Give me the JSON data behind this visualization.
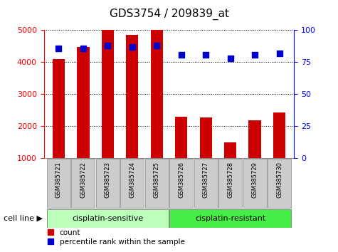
{
  "title": "GDS3754 / 209839_at",
  "categories": [
    "GSM385721",
    "GSM385722",
    "GSM385723",
    "GSM385724",
    "GSM385725",
    "GSM385726",
    "GSM385727",
    "GSM385728",
    "GSM385729",
    "GSM385730"
  ],
  "counts": [
    4100,
    4480,
    5000,
    4850,
    5000,
    2280,
    2270,
    1480,
    2170,
    2420
  ],
  "percentile_ranks": [
    86,
    86,
    88,
    87,
    88,
    81,
    81,
    78,
    81,
    82
  ],
  "bar_color": "#cc0000",
  "dot_color": "#0000cc",
  "group1_label": "cisplatin-sensitive",
  "group2_label": "cisplatin-resistant",
  "group1_indices": [
    0,
    1,
    2,
    3,
    4
  ],
  "group2_indices": [
    5,
    6,
    7,
    8,
    9
  ],
  "group1_color": "#bbffbb",
  "group2_color": "#44ee44",
  "xtick_bg_color": "#cccccc",
  "legend_count_label": "count",
  "legend_pct_label": "percentile rank within the sample",
  "ylim_left": [
    1000,
    5000
  ],
  "ylim_right": [
    0,
    100
  ],
  "yticks_left": [
    1000,
    2000,
    3000,
    4000,
    5000
  ],
  "yticks_right": [
    0,
    25,
    50,
    75,
    100
  ],
  "grid_color": "#000000",
  "bg_color": "#ffffff",
  "plot_bg": "#ffffff",
  "bar_width": 0.5,
  "cell_line_label": "cell line"
}
